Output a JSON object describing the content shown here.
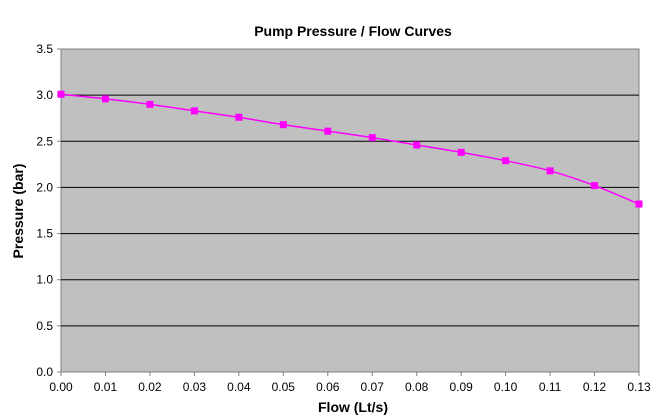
{
  "chart_data": {
    "type": "line",
    "title": "Pump Pressure / Flow Curves",
    "xlabel": "Flow (Lt/s)",
    "ylabel": "Pressure (bar)",
    "xlim": [
      0,
      0.13
    ],
    "ylim": [
      0,
      3.5
    ],
    "x_ticks": [
      "0.00",
      "0.01",
      "0.02",
      "0.03",
      "0.04",
      "0.05",
      "0.06",
      "0.07",
      "0.08",
      "0.09",
      "0.10",
      "0.11",
      "0.12",
      "0.13"
    ],
    "y_ticks": [
      "0.0",
      "0.5",
      "1.0",
      "1.5",
      "2.0",
      "2.5",
      "3.0",
      "3.5"
    ],
    "grid": "horizontal",
    "plot_background": "#C0C0C0",
    "series": [
      {
        "color": "#FF00FF",
        "marker": "square",
        "smooth": true,
        "x": [
          0.0,
          0.01,
          0.02,
          0.03,
          0.04,
          0.05,
          0.06,
          0.07,
          0.08,
          0.09,
          0.1,
          0.11,
          0.12,
          0.13
        ],
        "y": [
          3.01,
          2.96,
          2.9,
          2.83,
          2.76,
          2.68,
          2.61,
          2.54,
          2.46,
          2.38,
          2.29,
          2.18,
          2.02,
          1.82
        ]
      }
    ]
  }
}
